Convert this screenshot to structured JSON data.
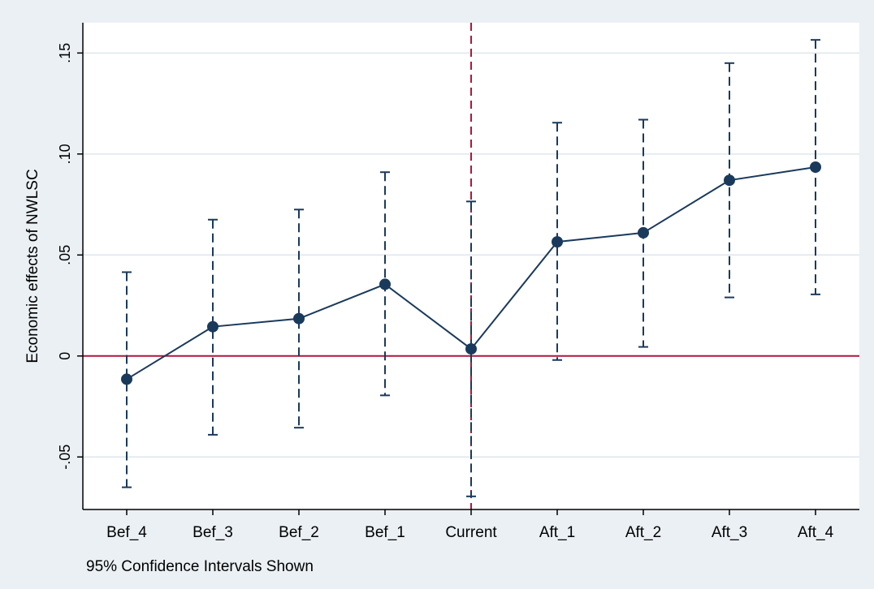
{
  "chart_data": {
    "type": "line",
    "title": "",
    "xlabel": "",
    "ylabel": "Economic effects of NWLSC",
    "note": "95% Confidence Intervals Shown",
    "categories": [
      "Bef_4",
      "Bef_3",
      "Bef_2",
      "Bef_1",
      "Current",
      "Aft_1",
      "Aft_2",
      "Aft_3",
      "Aft_4"
    ],
    "series": [
      {
        "values": [
          -0.0115,
          0.0145,
          0.0185,
          0.0355,
          0.0035,
          0.0565,
          0.061,
          0.087,
          0.0935
        ],
        "lower": [
          -0.065,
          -0.039,
          -0.0355,
          -0.0195,
          -0.0695,
          -0.002,
          0.0045,
          0.029,
          0.0305
        ],
        "upper": [
          0.0415,
          0.0675,
          0.0725,
          0.091,
          0.0765,
          0.1155,
          0.117,
          0.145,
          0.1565
        ]
      }
    ],
    "yticks": [
      -0.05,
      0,
      0.05,
      0.1,
      0.15
    ],
    "ytick_labels": [
      "-.05",
      "0",
      ".05",
      ".10",
      ".15"
    ],
    "ylim": [
      -0.076,
      0.165
    ],
    "reference_lines": {
      "horizontal_y": 0,
      "vertical_at": "Current"
    },
    "grid": true,
    "colors": {
      "background": "#eaf0f4",
      "plot_background": "#ffffff",
      "series": "#1a3a5c",
      "reference": "#b0173a",
      "grid": "#dde6ec",
      "axis": "#000000"
    }
  }
}
